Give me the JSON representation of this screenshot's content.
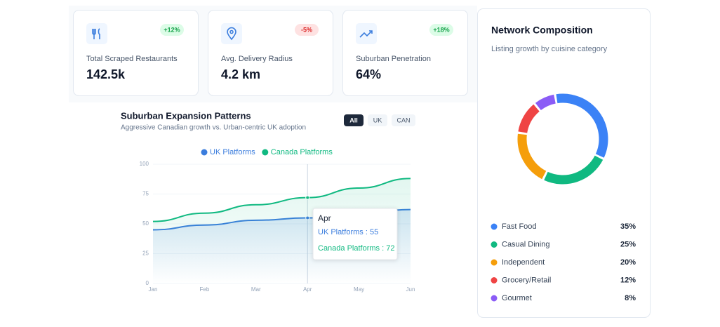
{
  "kpis": [
    {
      "label": "Total Scraped Restaurants",
      "value": "142.5k",
      "change": "+12%",
      "color": "#16a34a",
      "badge": "#dcfce7"
    },
    {
      "label": "Avg. Delivery Radius",
      "value": "4.2 km",
      "change": "-5%",
      "color": "#dc2626",
      "badge": "#fee2e2"
    },
    {
      "label": "Suburban Penetration",
      "value": "64%",
      "change": "+18%",
      "color": "#16a34a",
      "badge": "#dcfce7"
    }
  ],
  "chart_data": [
    {
      "type": "line",
      "title": "Suburban Expansion Patterns",
      "subtitle": "Aggressive Canadian growth vs. Urban-centric UK adoption",
      "filters": [
        "All",
        "UK",
        "CAN"
      ],
      "categories": [
        "Jan",
        "Feb",
        "Mar",
        "Apr",
        "May",
        "Jun"
      ],
      "series": [
        {
          "name": "UK Platforms",
          "color": "#3b7ddd",
          "values": [
            45,
            49,
            53,
            55,
            58,
            62
          ]
        },
        {
          "name": "Canada Platforms",
          "color": "#10b981",
          "values": [
            52,
            59,
            66,
            72,
            80,
            88
          ]
        }
      ],
      "ylim": [
        0,
        100
      ],
      "yticks": [
        0,
        25,
        50,
        75,
        100
      ],
      "tooltip": {
        "title": "Apr",
        "items": [
          "UK Platforms : 55",
          "Canada Platforms : 72"
        ]
      }
    },
    {
      "type": "pie",
      "title": "Network Composition",
      "subtitle": "Listing growth by cuisine category",
      "categories": [
        "Fast Food",
        "Casual Dining",
        "Independent",
        "Grocery/Retail",
        "Gourmet"
      ],
      "values": [
        35,
        25,
        20,
        12,
        8
      ],
      "value_labels": [
        "35%",
        "25%",
        "20%",
        "12%",
        "8%"
      ],
      "colors": [
        "#3b82f6",
        "#10b981",
        "#f59e0b",
        "#ef4444",
        "#8b5cf6"
      ]
    }
  ]
}
